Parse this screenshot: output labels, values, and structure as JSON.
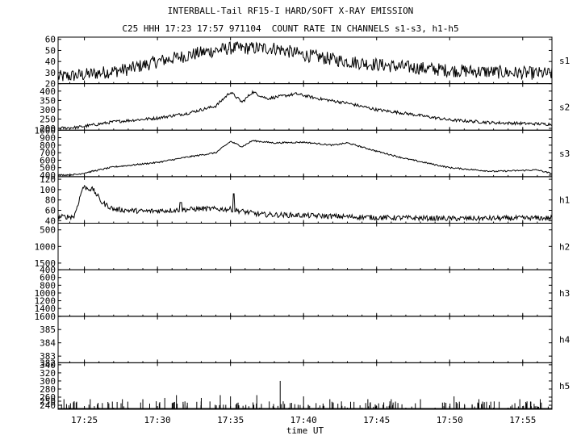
{
  "header": {
    "line1": "INTERBALL-Tail RF15-I HARD/SOFT X-RAY EMISSION",
    "line2": "C25 HHH 17:23 17:57 971104  COUNT RATE IN CHANNELS s1-s3, h1-h5"
  },
  "chart_data": {
    "type": "line",
    "xlabel": "time UT",
    "x_range_minutes": [
      23.2,
      57.0
    ],
    "x_ticks": [
      {
        "min": 25,
        "label": "17:25"
      },
      {
        "min": 30,
        "label": "17:30"
      },
      {
        "min": 35,
        "label": "17:35"
      },
      {
        "min": 40,
        "label": "17:40"
      },
      {
        "min": 45,
        "label": "17:45"
      },
      {
        "min": 50,
        "label": "17:50"
      },
      {
        "min": 55,
        "label": "17:55"
      }
    ],
    "panels": [
      {
        "name": "s1",
        "ylim": [
          20,
          62
        ],
        "inverted": false,
        "ticks": [
          {
            "v": 60,
            "label": "60"
          },
          {
            "v": 50,
            "label": "50"
          },
          {
            "v": 40,
            "label": "40"
          },
          {
            "v": 30,
            "label": "30"
          },
          {
            "v": 20,
            "label": "20"
          }
        ],
        "profile": [
          [
            23.2,
            26
          ],
          [
            25,
            28
          ],
          [
            28,
            33
          ],
          [
            30,
            40
          ],
          [
            33,
            48
          ],
          [
            35,
            52
          ],
          [
            38,
            52
          ],
          [
            40,
            46
          ],
          [
            43,
            40
          ],
          [
            46,
            36
          ],
          [
            50,
            32
          ],
          [
            54,
            30
          ],
          [
            57,
            29
          ]
        ],
        "noise": 6,
        "spikes": []
      },
      {
        "name": "s2",
        "ylim": [
          190,
          440
        ],
        "inverted": false,
        "ticks": [
          {
            "v": 400,
            "label": "400"
          },
          {
            "v": 350,
            "label": "350"
          },
          {
            "v": 300,
            "label": "300"
          },
          {
            "v": 250,
            "label": "250"
          },
          {
            "v": 200,
            "label": "200"
          }
        ],
        "profile": [
          [
            23.2,
            200
          ],
          [
            24.5,
            205
          ],
          [
            27,
            235
          ],
          [
            30,
            255
          ],
          [
            32,
            280
          ],
          [
            34,
            320
          ],
          [
            35,
            395
          ],
          [
            35.8,
            340
          ],
          [
            36.5,
            395
          ],
          [
            37.5,
            360
          ],
          [
            39.5,
            385
          ],
          [
            41,
            360
          ],
          [
            43,
            335
          ],
          [
            45,
            300
          ],
          [
            47,
            280
          ],
          [
            50,
            245
          ],
          [
            53,
            230
          ],
          [
            57,
            222
          ]
        ],
        "noise": 8,
        "spikes": []
      },
      {
        "name": "s3",
        "ylim": [
          380,
          1000
        ],
        "inverted": false,
        "ticks": [
          {
            "v": 1000,
            "label": "1000"
          },
          {
            "v": 900,
            "label": "900"
          },
          {
            "v": 800,
            "label": "800"
          },
          {
            "v": 700,
            "label": "700"
          },
          {
            "v": 600,
            "label": "600"
          },
          {
            "v": 500,
            "label": "500"
          },
          {
            "v": 400,
            "label": "400"
          }
        ],
        "profile": [
          [
            23.2,
            400
          ],
          [
            24.5,
            410
          ],
          [
            27,
            510
          ],
          [
            30,
            570
          ],
          [
            32,
            640
          ],
          [
            34,
            700
          ],
          [
            35,
            850
          ],
          [
            35.8,
            780
          ],
          [
            36.5,
            860
          ],
          [
            38,
            830
          ],
          [
            40,
            840
          ],
          [
            42,
            800
          ],
          [
            43,
            830
          ],
          [
            45,
            720
          ],
          [
            47,
            620
          ],
          [
            50,
            500
          ],
          [
            53,
            450
          ],
          [
            56,
            470
          ],
          [
            57,
            420
          ]
        ],
        "noise": 10,
        "spikes": []
      },
      {
        "name": "h1",
        "ylim": [
          35,
          125
        ],
        "inverted": false,
        "ticks": [
          {
            "v": 120,
            "label": "120"
          },
          {
            "v": 100,
            "label": "100"
          },
          {
            "v": 80,
            "label": "80"
          },
          {
            "v": 60,
            "label": "60"
          },
          {
            "v": 40,
            "label": "40"
          }
        ],
        "profile": [
          [
            23.2,
            47
          ],
          [
            24.3,
            48
          ],
          [
            24.9,
            105
          ],
          [
            25.6,
            100
          ],
          [
            26.2,
            75
          ],
          [
            27,
            62
          ],
          [
            29,
            58
          ],
          [
            31,
            60
          ],
          [
            33,
            63
          ],
          [
            35,
            62
          ],
          [
            37,
            52
          ],
          [
            40,
            50
          ],
          [
            45,
            46
          ],
          [
            50,
            44
          ],
          [
            57,
            45
          ]
        ],
        "noise": 5,
        "spikes": [
          [
            35.2,
            92
          ],
          [
            31.6,
            75
          ]
        ]
      },
      {
        "name": "h2",
        "ylim": [
          300,
          1700
        ],
        "inverted": true,
        "ticks": [
          {
            "v": 500,
            "label": "500"
          },
          {
            "v": 1000,
            "label": "1000"
          },
          {
            "v": 1500,
            "label": "1500"
          }
        ],
        "profile": [],
        "noise": 0,
        "spikes": []
      },
      {
        "name": "h3",
        "ylim": [
          400,
          1600
        ],
        "inverted": true,
        "ticks": [
          {
            "v": 400,
            "label": "400"
          },
          {
            "v": 600,
            "label": "600"
          },
          {
            "v": 800,
            "label": "800"
          },
          {
            "v": 1000,
            "label": "1000"
          },
          {
            "v": 1200,
            "label": "1200"
          },
          {
            "v": 1400,
            "label": "1400"
          },
          {
            "v": 1600,
            "label": "1600"
          }
        ],
        "profile": [],
        "noise": 0,
        "spikes": []
      },
      {
        "name": "h4",
        "ylim": [
          382.5,
          386
        ],
        "inverted": false,
        "ticks": [
          {
            "v": 385,
            "label": "385"
          },
          {
            "v": 384,
            "label": "384"
          },
          {
            "v": 383,
            "label": "383"
          },
          {
            "v": 382.5,
            "label": "382"
          }
        ],
        "profile": [],
        "noise": 0,
        "spikes": []
      },
      {
        "name": "h5",
        "ylim": [
          230,
          345
        ],
        "inverted": false,
        "ticks": [
          {
            "v": 340,
            "label": "340"
          },
          {
            "v": 320,
            "label": "320"
          },
          {
            "v": 300,
            "label": "300"
          },
          {
            "v": 280,
            "label": "280"
          },
          {
            "v": 260,
            "label": "260"
          },
          {
            "v": 250,
            "label": "250"
          },
          {
            "v": 240,
            "label": "240"
          }
        ],
        "profile": [
          [
            23.2,
            232
          ],
          [
            57,
            232
          ]
        ],
        "noise": 0,
        "baseline": 232,
        "spikes": [
          [
            23.6,
            255
          ],
          [
            24.3,
            250
          ],
          [
            25.4,
            255
          ],
          [
            27.6,
            255
          ],
          [
            29.0,
            255
          ],
          [
            30.5,
            258
          ],
          [
            31.3,
            265
          ],
          [
            33.0,
            258
          ],
          [
            34.3,
            265
          ],
          [
            35.0,
            262
          ],
          [
            36.8,
            265
          ],
          [
            38.4,
            300
          ],
          [
            40.0,
            262
          ],
          [
            41.8,
            255
          ],
          [
            44.4,
            255
          ],
          [
            46.0,
            255
          ],
          [
            48.0,
            255
          ],
          [
            50.3,
            262
          ],
          [
            52.0,
            255
          ],
          [
            54.8,
            255
          ],
          [
            56.2,
            255
          ]
        ]
      }
    ]
  }
}
